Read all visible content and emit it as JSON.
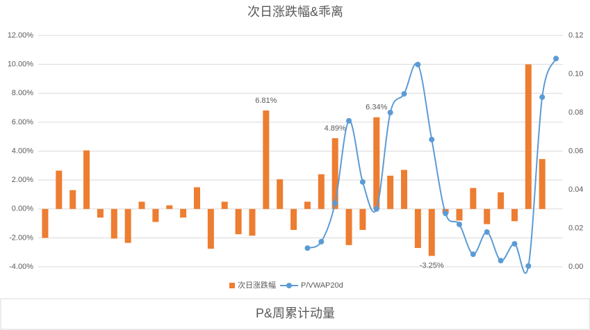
{
  "chart_data": {
    "type": "bar_line",
    "title": "次日涨跌幅&乖离",
    "categories": [
      null,
      null,
      null,
      null,
      null,
      null,
      null,
      null,
      null,
      null,
      null,
      null,
      null,
      null,
      null,
      null,
      null,
      null,
      null,
      null,
      null,
      null,
      null,
      null,
      null,
      null,
      null,
      null,
      null,
      null,
      null,
      null,
      null,
      null,
      null,
      null,
      null,
      null
    ],
    "series": [
      {
        "name": "次日涨跌幅",
        "type": "bar",
        "color": "#ED7D31",
        "values": [
          -2.0,
          2.65,
          1.3,
          4.05,
          -0.6,
          -2.05,
          -2.35,
          0.5,
          -0.9,
          0.25,
          -0.6,
          1.5,
          -2.75,
          0.5,
          -1.75,
          -1.85,
          6.81,
          2.05,
          -1.45,
          0.5,
          2.4,
          4.89,
          -2.5,
          -1.45,
          6.34,
          2.3,
          2.7,
          -2.7,
          -3.25,
          -0.3,
          -0.8,
          1.45,
          -1.05,
          1.15,
          -0.85,
          10.0,
          3.45,
          null
        ],
        "value_labels": [
          null,
          null,
          null,
          null,
          null,
          null,
          null,
          null,
          null,
          null,
          null,
          null,
          null,
          null,
          null,
          null,
          "6.81%",
          null,
          null,
          null,
          null,
          "4.89%",
          null,
          null,
          "6.34%",
          null,
          null,
          null,
          "-3.25%",
          null,
          null,
          null,
          null,
          null,
          null,
          null,
          null,
          null
        ]
      },
      {
        "name": "P/VWAP20d",
        "type": "line",
        "axis": "y2",
        "color": "#5B9BD5",
        "values": [
          null,
          null,
          null,
          null,
          null,
          null,
          null,
          null,
          null,
          null,
          null,
          null,
          null,
          null,
          null,
          null,
          null,
          null,
          null,
          0.0097,
          0.013,
          0.033,
          0.0757,
          0.044,
          0.03,
          0.08,
          0.0897,
          0.1049,
          0.066,
          0.0277,
          0.022,
          0.0065,
          0.018,
          0.0032,
          0.0119,
          0.0004,
          0.088,
          0.108
        ]
      }
    ],
    "ylim": [
      -4,
      12
    ],
    "yticks": [
      {
        "value": -4,
        "label": "-4.00%"
      },
      {
        "value": -2,
        "label": "-2.00%"
      },
      {
        "value": 0,
        "label": "0.00%"
      },
      {
        "value": 2,
        "label": "2.00%"
      },
      {
        "value": 4,
        "label": "4.00%"
      },
      {
        "value": 6,
        "label": "6.00%"
      },
      {
        "value": 8,
        "label": "8.00%"
      },
      {
        "value": 10,
        "label": "10.00%"
      },
      {
        "value": 12,
        "label": "12.00%"
      }
    ],
    "y2lim": [
      0,
      0.12
    ],
    "y2ticks": [
      {
        "value": 0,
        "label": "0.00"
      },
      0.02,
      0.04,
      0.06,
      0.08,
      {
        "value": 0.1,
        "label": "0.10"
      },
      0.12
    ],
    "grid": true,
    "legend": "bottom"
  },
  "second_chart": {
    "title": "P&周累计动量"
  }
}
